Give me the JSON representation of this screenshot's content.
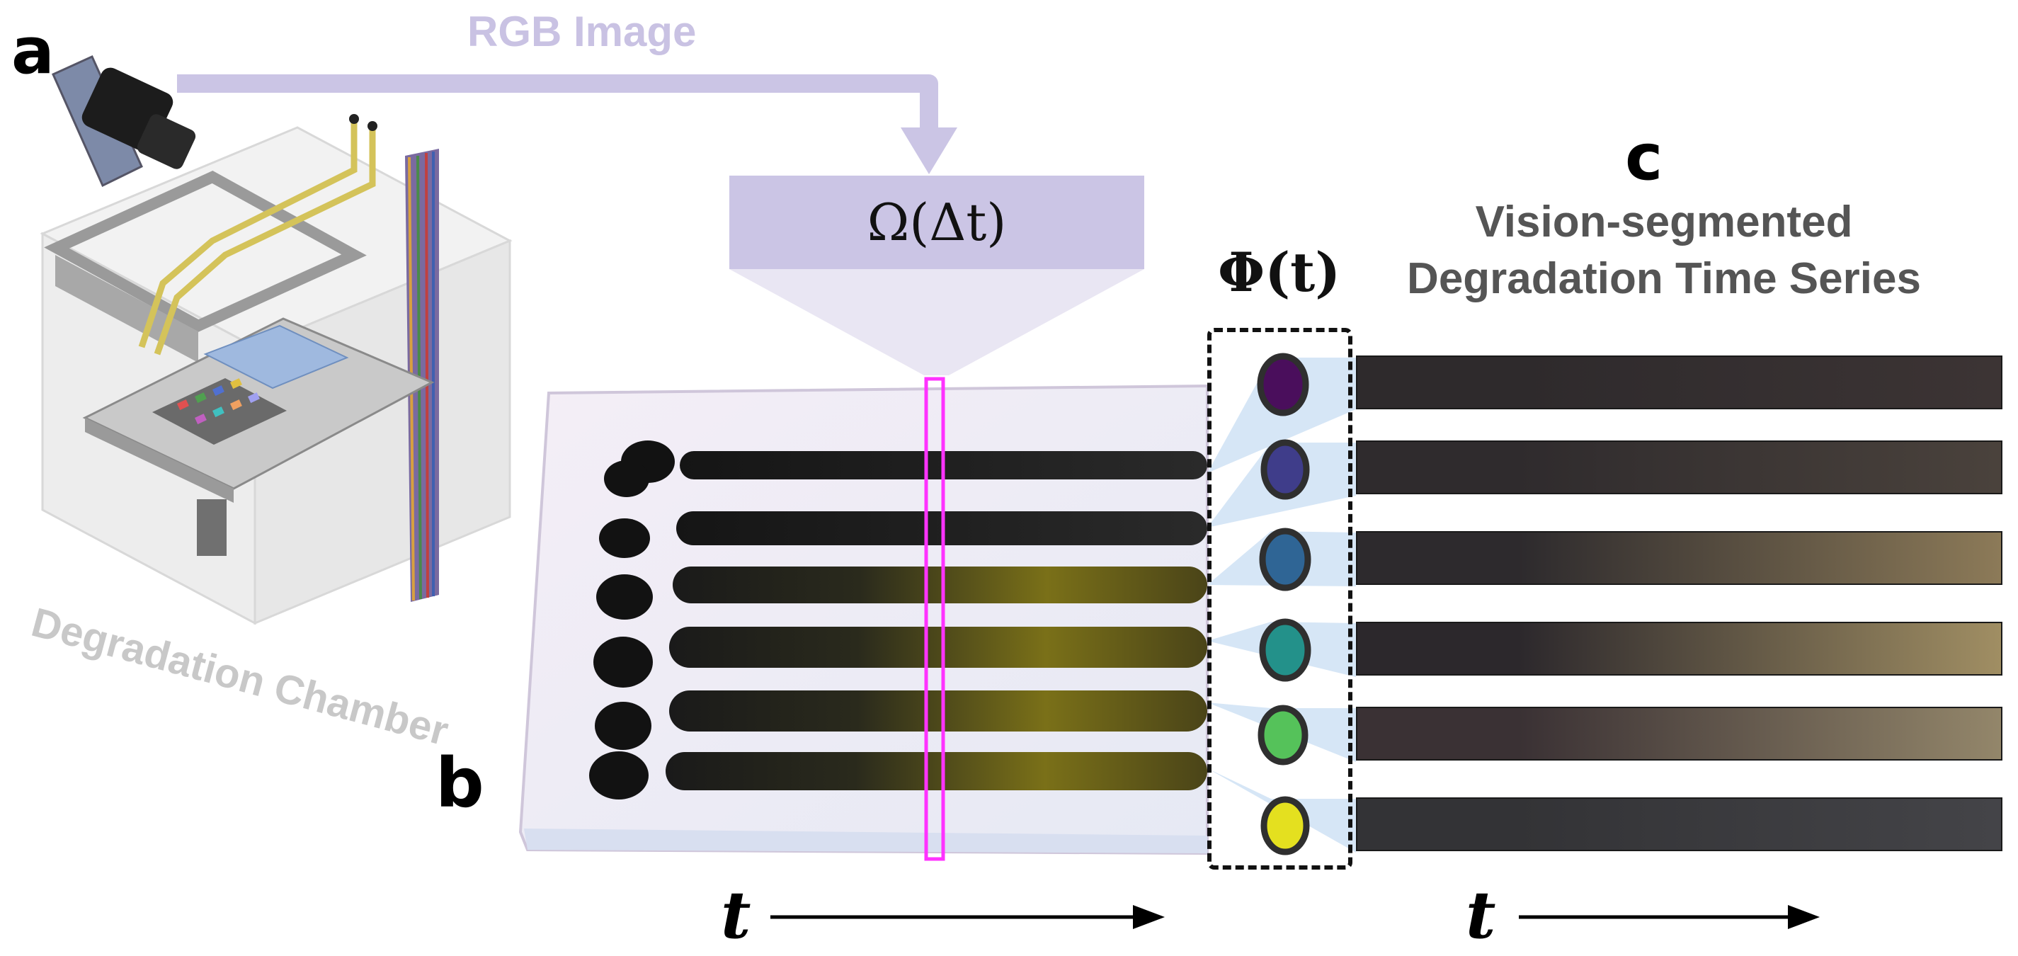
{
  "panels": {
    "a": "a",
    "b": "b",
    "c": "c"
  },
  "rgb_image_label": "RGB Image",
  "operator_label": "Ω(Δt)",
  "phi_label": "Φ(t)",
  "chamber_label": "Degradation Chamber",
  "series_title_line1": "Vision-segmented",
  "series_title_line2": "Degradation Time Series",
  "time_axis_label": "t",
  "colors": {
    "accent_purple": "#cbc5e5",
    "slice_magenta": "#ff33ff",
    "label_gray": "#555555"
  },
  "drops": [
    {
      "color": "#4a0e5c",
      "strip_start": "#2e2a2c",
      "strip_end": "#3c3434"
    },
    {
      "color": "#3f3d8a",
      "strip_start": "#2f2b2d",
      "strip_end": "#4a423c"
    },
    {
      "color": "#2f6595",
      "strip_start": "#2d2a2d",
      "strip_end": "#8c7a58"
    },
    {
      "color": "#23918a",
      "strip_start": "#2c282c",
      "strip_end": "#a08e63"
    },
    {
      "color": "#55c25a",
      "strip_start": "#3a3134",
      "strip_end": "#93866a"
    },
    {
      "color": "#e4e01f",
      "strip_start": "#333336",
      "strip_end": "#444448"
    }
  ]
}
